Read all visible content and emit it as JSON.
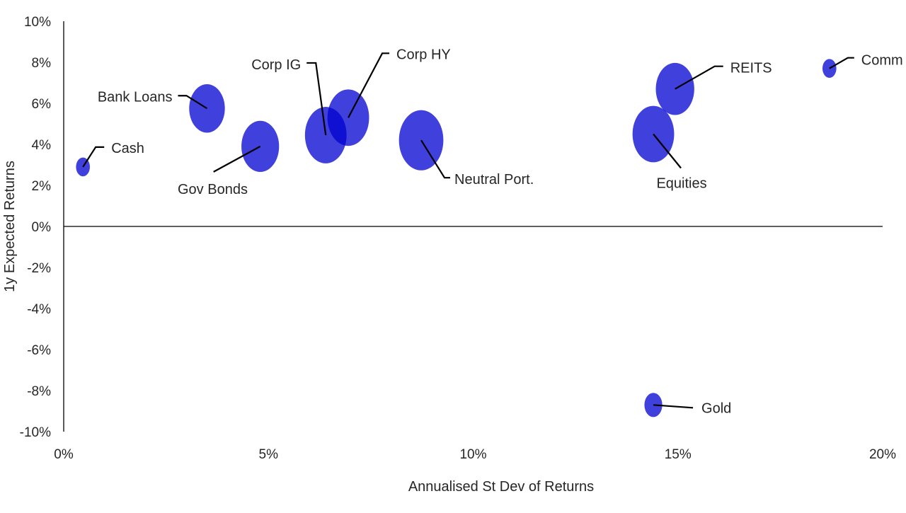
{
  "chart_data": {
    "type": "scatter",
    "subtype": "bubble",
    "title": "",
    "xlabel": "Annualised St Dev of Returns",
    "ylabel": "1y Expected Returns",
    "xlim": [
      0,
      20
    ],
    "ylim": [
      -10,
      10
    ],
    "x_ticks": [
      0,
      5,
      10,
      15,
      20
    ],
    "x_tick_labels": [
      "0%",
      "5%",
      "10%",
      "15%",
      "20%"
    ],
    "y_ticks": [
      10,
      8,
      6,
      4,
      2,
      0,
      -2,
      -4,
      -6,
      -8,
      -10
    ],
    "y_tick_labels": [
      "10%",
      "8%",
      "6%",
      "4%",
      "2%",
      "0%",
      "-2%",
      "-4%",
      "-6%",
      "-8%",
      "-10%"
    ],
    "grid": false,
    "bubble_color": "#0000d0",
    "points": [
      {
        "name": "Cash",
        "x": 0.47,
        "y": 2.9,
        "size": 0.35
      },
      {
        "name": "Bank Loans",
        "x": 3.5,
        "y": 5.75,
        "size": 0.9
      },
      {
        "name": "Gov Bonds",
        "x": 4.8,
        "y": 3.9,
        "size": 0.95
      },
      {
        "name": "Corp IG",
        "x": 6.4,
        "y": 4.45,
        "size": 1.05
      },
      {
        "name": "Corp HY",
        "x": 6.95,
        "y": 5.3,
        "size": 1.05
      },
      {
        "name": "Neutral Port.",
        "x": 8.73,
        "y": 4.2,
        "size": 1.12
      },
      {
        "name": "Equities",
        "x": 14.4,
        "y": 4.5,
        "size": 1.05
      },
      {
        "name": "REITS",
        "x": 14.93,
        "y": 6.7,
        "size": 0.97
      },
      {
        "name": "Comm",
        "x": 18.7,
        "y": 7.7,
        "size": 0.35
      },
      {
        "name": "Gold",
        "x": 14.4,
        "y": -8.7,
        "size": 0.45
      }
    ]
  }
}
